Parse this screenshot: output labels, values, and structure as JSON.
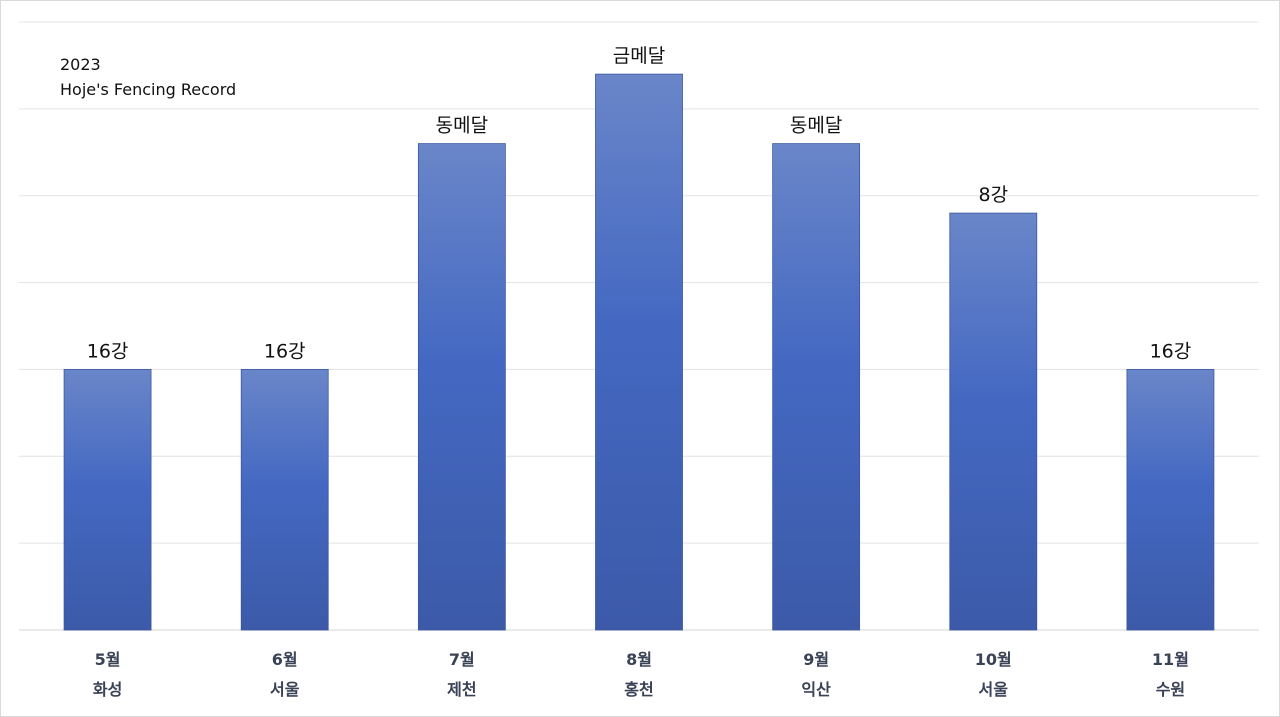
{
  "chart_data": {
    "type": "bar",
    "title": "2023",
    "subtitle": "Hoje's Fencing Record",
    "categories": [
      [
        "5월",
        "화성"
      ],
      [
        "6월",
        "서울"
      ],
      [
        "7월",
        "제천"
      ],
      [
        "8월",
        "홍천"
      ],
      [
        "9월",
        "익산"
      ],
      [
        "10월",
        "서울"
      ],
      [
        "11월",
        "수원"
      ]
    ],
    "values": [
      3,
      3,
      5.6,
      6.4,
      5.6,
      4.8,
      3
    ],
    "data_labels": [
      "16강",
      "16강",
      "동메달",
      "금메달",
      "동메달",
      "8강",
      "16강"
    ],
    "ylim": [
      0,
      7
    ],
    "grid": true,
    "xlabel": "",
    "ylabel": ""
  },
  "colors": {
    "bar_top": "#6a86c9",
    "bar_mid": "#4468c2",
    "bar_bottom": "#3c5aa8",
    "grid": "#e3e3e3"
  }
}
